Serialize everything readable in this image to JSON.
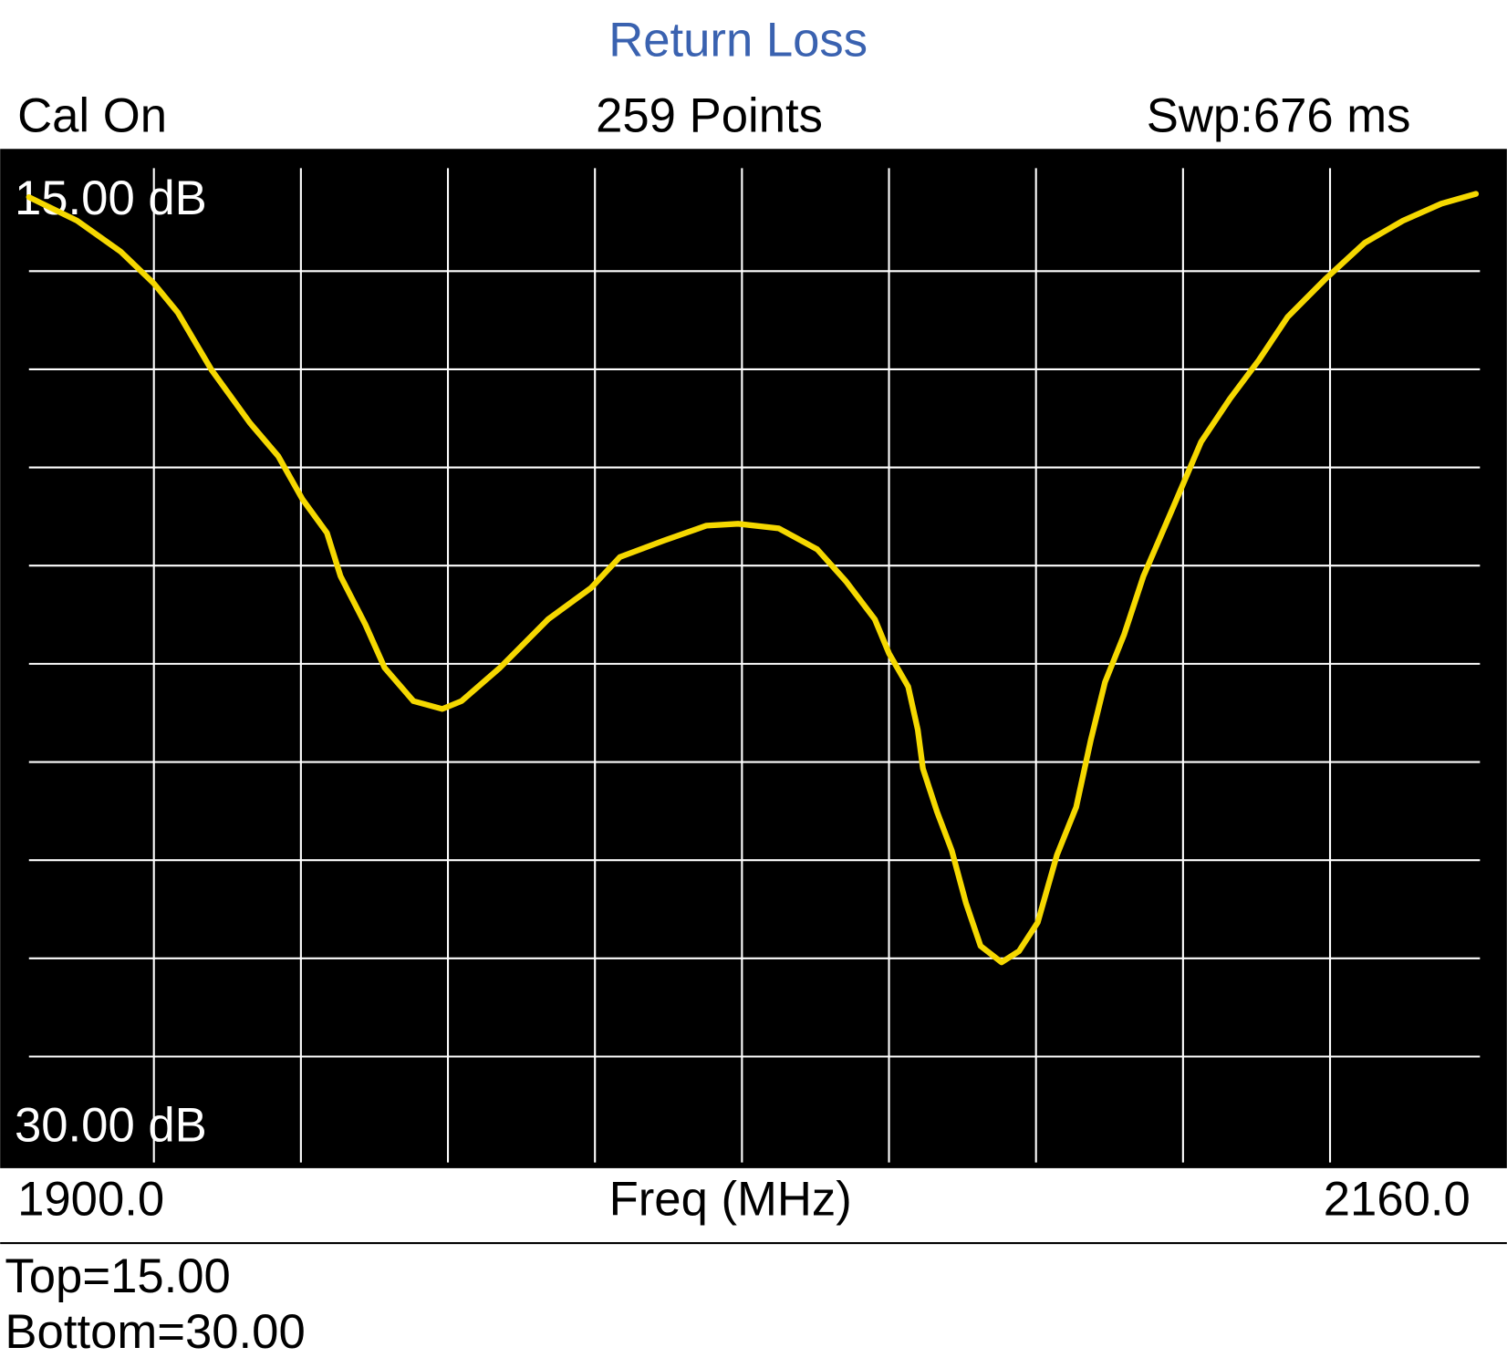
{
  "chart_data": {
    "type": "line",
    "title": "Return Loss",
    "status": [
      "Cal On",
      "259 Points",
      "Swp:676 ms"
    ],
    "xlabel": "Freq (MHz)",
    "annotations": [
      "Top=15.00",
      "Bottom=30.00"
    ],
    "xlim": [
      1900,
      2160
    ],
    "xticks": [
      {
        "value": 1900,
        "label": "1900.0"
      },
      {
        "value": 2160,
        "label": "2160.0"
      }
    ],
    "xgrid": [
      1926,
      1952,
      1978,
      2004,
      2030,
      2056,
      2082,
      2108,
      2134
    ],
    "ylim": [
      15,
      30
    ],
    "yticks": [
      {
        "value": 15,
        "label": "15.00 dB"
      },
      {
        "value": 30,
        "label": "30.00 dB"
      }
    ],
    "ygrid": [
      16.5,
      18,
      19.5,
      21,
      22.5,
      24,
      25.5,
      27,
      28.5
    ],
    "y_inverted": true,
    "grid": true,
    "x": [
      1903.9,
      1912.4,
      1920.1,
      1926,
      1930.2,
      1936.2,
      1943,
      1948,
      1952.3,
      1956.6,
      1959,
      1963.4,
      1966.8,
      1971.9,
      1977,
      1980.4,
      1987.2,
      1995.7,
      2003.3,
      2008.4,
      2016.1,
      2023.7,
      2029.3,
      2036.5,
      2043.3,
      2048.4,
      2053.5,
      2056,
      2059.4,
      2061.1,
      2062,
      2064.5,
      2067.1,
      2069.6,
      2072.2,
      2075.9,
      2079,
      2082.3,
      2085.7,
      2089.1,
      2091.7,
      2094.2,
      2097.6,
      2101,
      2106.1,
      2111.2,
      2116.3,
      2121.4,
      2126.5,
      2133.3,
      2140.1,
      2146.9,
      2153.7,
      2159.8
    ],
    "series": [
      {
        "color": "#f5d800",
        "values": [
          15.37,
          15.73,
          16.2,
          16.69,
          17.13,
          18.01,
          18.82,
          19.33,
          19.99,
          20.5,
          21.16,
          21.9,
          22.56,
          23.07,
          23.19,
          23.07,
          22.56,
          21.82,
          21.34,
          20.87,
          20.62,
          20.39,
          20.36,
          20.43,
          20.75,
          21.24,
          21.82,
          22.34,
          22.85,
          23.51,
          24.1,
          24.76,
          25.35,
          26.15,
          26.81,
          27.06,
          26.89,
          26.45,
          25.42,
          24.69,
          23.66,
          22.78,
          22.05,
          21.16,
          20.14,
          19.11,
          18.45,
          17.86,
          17.2,
          16.61,
          16.07,
          15.73,
          15.47,
          15.32
        ]
      }
    ]
  }
}
